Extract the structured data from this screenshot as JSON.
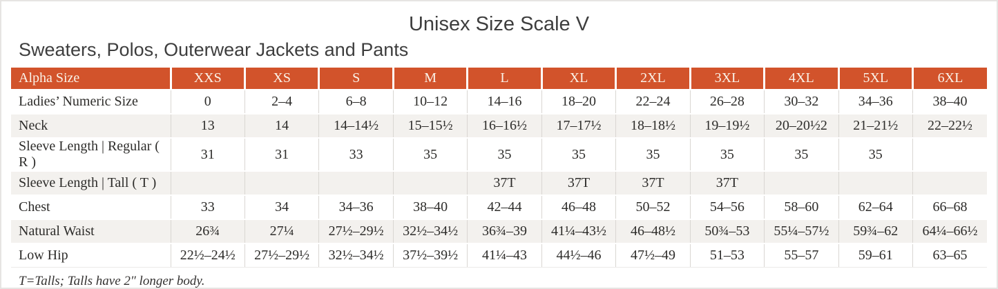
{
  "page": {
    "title": "Unisex Size Scale V",
    "subtitle": "Sweaters, Polos, Outerwear Jackets and Pants",
    "footnote": "T=Talls; Talls have 2″ longer body."
  },
  "colors": {
    "header_bg": "#d2532b",
    "header_text": "#faf2e8",
    "row_shaded": "#f3f1ee",
    "body_text": "#2d2c2a",
    "title_text": "#3e3e3e",
    "divider": "#d9d6d2",
    "page_border": "#e6e4e2"
  },
  "table": {
    "columns": [
      "Alpha Size",
      "XXS",
      "XS",
      "S",
      "M",
      "L",
      "XL",
      "2XL",
      "3XL",
      "4XL",
      "5XL",
      "6XL"
    ],
    "rows": [
      {
        "label": "Ladies’ Numeric Size",
        "shaded": false,
        "values": [
          "0",
          "2–4",
          "6–8",
          "10–12",
          "14–16",
          "18–20",
          "22–24",
          "26–28",
          "30–32",
          "34–36",
          "38–40"
        ]
      },
      {
        "label": "Neck",
        "shaded": true,
        "values": [
          "13",
          "14",
          "14–14½",
          "15–15½",
          "16–16½",
          "17–17½",
          "18–18½",
          "19–19½",
          "20–20½2",
          "21–21½",
          "22–22½"
        ]
      },
      {
        "label": "Sleeve Length | Regular ( R )",
        "shaded": false,
        "values": [
          "31",
          "31",
          "33",
          "35",
          "35",
          "35",
          "35",
          "35",
          "35",
          "35",
          ""
        ]
      },
      {
        "label": "Sleeve Length | Tall ( T )",
        "shaded": true,
        "values": [
          "",
          "",
          "",
          "",
          "37T",
          "37T",
          "37T",
          "37T",
          "",
          "",
          ""
        ]
      },
      {
        "label": "Chest",
        "shaded": false,
        "values": [
          "33",
          "34",
          "34–36",
          "38–40",
          "42–44",
          "46–48",
          "50–52",
          "54–56",
          "58–60",
          "62–64",
          "66–68"
        ]
      },
      {
        "label": "Natural Waist",
        "shaded": true,
        "values": [
          "26¾",
          "27¼",
          "27½–29½",
          "32½–34½",
          "36¾–39",
          "41¼–43½",
          "46–48½",
          "50¾–53",
          "55¼–57½",
          "59¾–62",
          "64¼–66½"
        ]
      },
      {
        "label": "Low Hip",
        "shaded": false,
        "values": [
          "22½–24½",
          "27½–29½",
          "32½–34½",
          "37½–39½",
          "41¼–43",
          "44½–46",
          "47½–49",
          "51–53",
          "55–57",
          "59–61",
          "63–65"
        ]
      }
    ]
  }
}
